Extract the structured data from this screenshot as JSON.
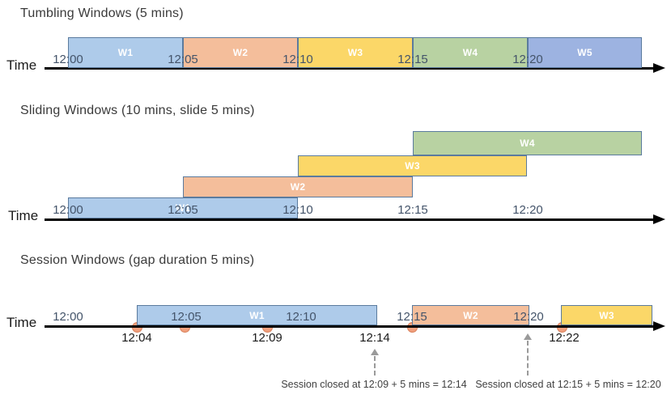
{
  "colors": {
    "blue_fill": "#AECBEA",
    "orange_fill": "#F4BE9B",
    "yellow_fill": "#FBD768",
    "green_fill": "#B8D2A2",
    "periwinkle_fill": "#9DB3E1",
    "box_border": "#5B7B9E",
    "dot_fill": "#F1A07E",
    "dot_border": "#D9805A",
    "timeline": "#000000",
    "tick_text": "#44546A",
    "annotation_text": "#404040"
  },
  "tumbling": {
    "title": "Tumbling Windows (5 mins)",
    "time_label": "Time",
    "ticks": [
      "12:00",
      "12:05",
      "12:10",
      "12:15",
      "12:20"
    ],
    "windows": [
      {
        "label": "W1",
        "color": "blue",
        "start": "12:00",
        "end": "12:05"
      },
      {
        "label": "W2",
        "color": "orange",
        "start": "12:05",
        "end": "12:10"
      },
      {
        "label": "W3",
        "color": "yellow",
        "start": "12:10",
        "end": "12:15"
      },
      {
        "label": "W4",
        "color": "green",
        "start": "12:15",
        "end": "12:20"
      },
      {
        "label": "W5",
        "color": "periwinkle",
        "start": "12:20",
        "end": "12:25"
      }
    ]
  },
  "sliding": {
    "title": "Sliding Windows (10 mins, slide 5 mins)",
    "time_label": "Time",
    "ticks": [
      "12:00",
      "12:05",
      "12:10",
      "12:15",
      "12:20"
    ],
    "windows": [
      {
        "label": "W1",
        "color": "blue",
        "start": "12:00",
        "end": "12:10"
      },
      {
        "label": "W2",
        "color": "orange",
        "start": "12:05",
        "end": "12:15"
      },
      {
        "label": "W3",
        "color": "yellow",
        "start": "12:10",
        "end": "12:20"
      },
      {
        "label": "W4",
        "color": "green",
        "start": "12:15",
        "end": "12:25"
      }
    ]
  },
  "session": {
    "title": "Session Windows (gap duration 5 mins)",
    "time_label": "Time",
    "ticks_above": [
      "12:00",
      "12:05",
      "12:10",
      "12:15",
      "12:20"
    ],
    "ticks_below": [
      "12:04",
      "12:09",
      "12:14",
      "12:22"
    ],
    "event_dot_count": 5,
    "windows": [
      {
        "label": "W1",
        "color": "blue"
      },
      {
        "label": "W2",
        "color": "orange"
      },
      {
        "label": "W3",
        "color": "yellow"
      }
    ],
    "annotations": [
      "Session closed at 12:09 + 5 mins = 12:14",
      "Session closed at 12:15 + 5 mins = 12:20"
    ]
  }
}
